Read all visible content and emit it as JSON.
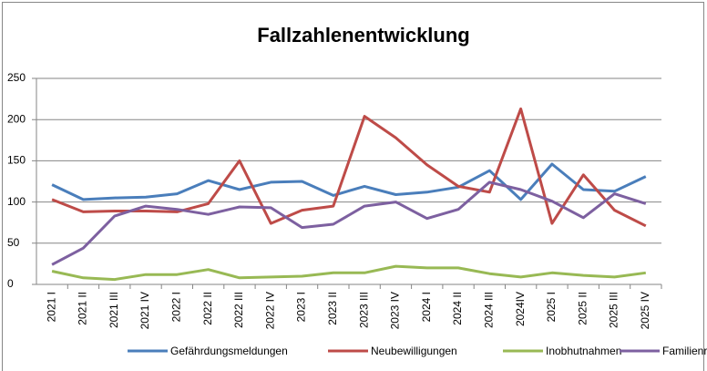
{
  "chart_data": {
    "type": "line",
    "title": "Fallzahlenentwicklung",
    "categories": [
      "2021 I",
      "2021 II",
      "2021 III",
      "2021 IV",
      "2022 I",
      "2022 II",
      "2022 III",
      "2022 IV",
      "2023 I",
      "2023 II",
      "2023 III",
      "2023 IV",
      "2024 I",
      "2024 II",
      "2024 III",
      "2024IV",
      "2025 I",
      "2025 II",
      "2025 III",
      "2025 IV"
    ],
    "series": [
      {
        "name": "Gefährdungsmeldungen",
        "color": "#4a7ebb",
        "values": [
          121,
          103,
          105,
          106,
          110,
          126,
          115,
          124,
          125,
          108,
          119,
          109,
          112,
          118,
          138,
          103,
          146,
          115,
          113,
          131
        ]
      },
      {
        "name": "Neubewilligungen",
        "color": "#be4b48",
        "values": [
          103,
          88,
          89,
          89,
          88,
          98,
          150,
          74,
          90,
          95,
          204,
          178,
          145,
          119,
          112,
          213,
          74,
          133,
          90,
          71
        ]
      },
      {
        "name": "Inobhutnahmen",
        "color": "#98b954",
        "values": [
          16,
          8,
          6,
          12,
          12,
          18,
          8,
          9,
          10,
          14,
          14,
          22,
          20,
          20,
          13,
          9,
          14,
          11,
          9,
          14
        ]
      },
      {
        "name": "Familienrat",
        "color": "#7d60a0",
        "values": [
          24,
          44,
          83,
          95,
          91,
          85,
          94,
          93,
          69,
          73,
          95,
          100,
          80,
          91,
          124,
          115,
          101,
          81,
          110,
          98
        ]
      }
    ],
    "ylim": [
      0,
      250
    ],
    "yticks": [
      0,
      50,
      100,
      150,
      200,
      250
    ],
    "grid": true,
    "legend": "bottom"
  }
}
